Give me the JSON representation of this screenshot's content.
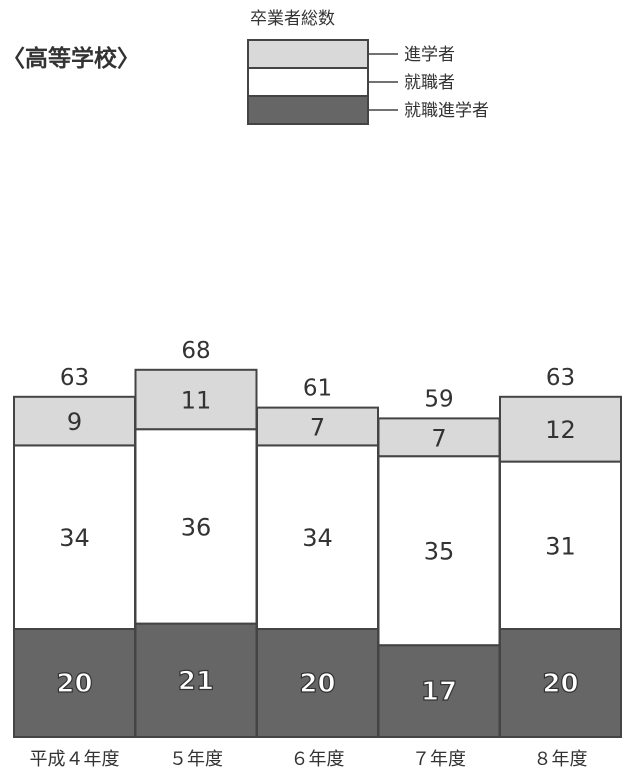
{
  "colors": {
    "advance": "#d9d9d9",
    "employed": "#ffffff",
    "employed_advance": "#666666",
    "frame": "#444444",
    "text": "#333333"
  },
  "chart_data": {
    "type": "bar",
    "stacked": true,
    "title": "〈高等学校〉",
    "legend": {
      "title": "卒業者総数",
      "placement": "top-center",
      "items": [
        "進学者",
        "就職者",
        "就職進学者"
      ]
    },
    "categories": [
      "平成４年度",
      "５年度",
      "６年度",
      "７年度",
      "８年度"
    ],
    "totals": [
      63,
      68,
      61,
      59,
      63
    ],
    "series": [
      {
        "name": "就職進学者",
        "values": [
          20,
          21,
          20,
          17,
          20
        ]
      },
      {
        "name": "就職者",
        "values": [
          34,
          36,
          34,
          35,
          31
        ]
      },
      {
        "name": "進学者",
        "values": [
          9,
          11,
          7,
          7,
          12
        ]
      }
    ],
    "ylim": [
      0,
      68
    ],
    "grid": false,
    "xlabel": "",
    "ylabel": ""
  }
}
